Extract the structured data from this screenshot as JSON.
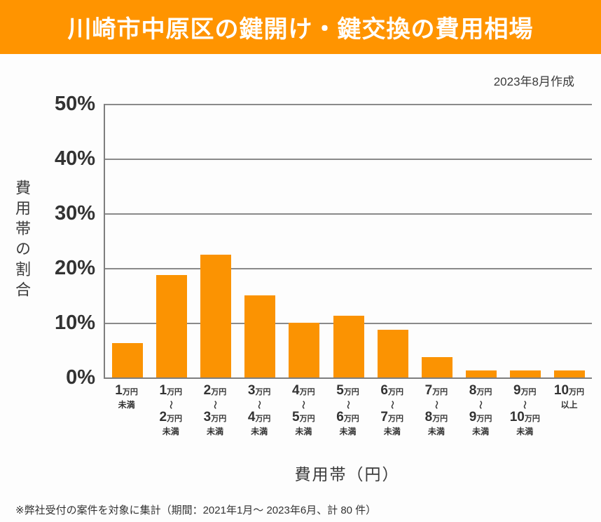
{
  "header": {
    "title": "川崎市中原区の鍵開け・鍵交換の費用相場",
    "date_note": "2023年8月作成"
  },
  "chart_data": {
    "type": "bar",
    "title": "川崎市中原区の鍵開け・鍵交換の費用相場",
    "categories": [
      "1万円未満",
      "1万円〜2万円未満",
      "2万円〜3万円未満",
      "3万円〜4万円未満",
      "4万円〜5万円未満",
      "5万円〜6万円未満",
      "6万円〜7万円未満",
      "7万円〜8万円未満",
      "8万円〜9万円未満",
      "9万円〜10万円未満",
      "10万円以上"
    ],
    "categories_display": [
      [
        {
          "num": "1",
          "unit": "万円"
        },
        {
          "text": "未満"
        }
      ],
      [
        {
          "num": "1",
          "unit": "万円"
        },
        {
          "text": "〜"
        },
        {
          "num": "2",
          "unit": "万円"
        },
        {
          "text": "未満"
        }
      ],
      [
        {
          "num": "2",
          "unit": "万円"
        },
        {
          "text": "〜"
        },
        {
          "num": "3",
          "unit": "万円"
        },
        {
          "text": "未満"
        }
      ],
      [
        {
          "num": "3",
          "unit": "万円"
        },
        {
          "text": "〜"
        },
        {
          "num": "4",
          "unit": "万円"
        },
        {
          "text": "未満"
        }
      ],
      [
        {
          "num": "4",
          "unit": "万円"
        },
        {
          "text": "〜"
        },
        {
          "num": "5",
          "unit": "万円"
        },
        {
          "text": "未満"
        }
      ],
      [
        {
          "num": "5",
          "unit": "万円"
        },
        {
          "text": "〜"
        },
        {
          "num": "6",
          "unit": "万円"
        },
        {
          "text": "未満"
        }
      ],
      [
        {
          "num": "6",
          "unit": "万円"
        },
        {
          "text": "〜"
        },
        {
          "num": "7",
          "unit": "万円"
        },
        {
          "text": "未満"
        }
      ],
      [
        {
          "num": "7",
          "unit": "万円"
        },
        {
          "text": "〜"
        },
        {
          "num": "8",
          "unit": "万円"
        },
        {
          "text": "未満"
        }
      ],
      [
        {
          "num": "8",
          "unit": "万円"
        },
        {
          "text": "〜"
        },
        {
          "num": "9",
          "unit": "万円"
        },
        {
          "text": "未満"
        }
      ],
      [
        {
          "num": "9",
          "unit": "万円"
        },
        {
          "text": "〜"
        },
        {
          "num": "10",
          "unit": "万円"
        },
        {
          "text": "未満"
        }
      ],
      [
        {
          "num": "10",
          "unit": "万円"
        },
        {
          "text": "以上"
        }
      ]
    ],
    "values": [
      6.25,
      18.75,
      22.5,
      15,
      10,
      11.25,
      8.75,
      3.75,
      1.25,
      1.25,
      1.25
    ],
    "value_unit": "%",
    "ylabel": "費用帯の割合",
    "xlabel": "費用帯（円）",
    "ylim": [
      0,
      50
    ],
    "yticks": [
      {
        "value": 50,
        "label": "50%"
      },
      {
        "value": 40,
        "label": "40%"
      },
      {
        "value": 30,
        "label": "30%"
      },
      {
        "value": 20,
        "label": "20%"
      },
      {
        "value": 10,
        "label": "10%"
      },
      {
        "value": 0,
        "label": "0%"
      }
    ],
    "grid": true,
    "legend_position": "none",
    "bar_color": "#FB9302"
  },
  "footnote": "※弊社受付の案件を対象に集計（期間：2021年1月～ 2023年6月、計 80 件）",
  "colors": {
    "banner_bg": "#FF9400",
    "banner_text": "#FFFFFF",
    "bar": "#FB9302",
    "gridline": "#8A8A8A",
    "axis": "#7E7E7E",
    "text": "#333333"
  }
}
